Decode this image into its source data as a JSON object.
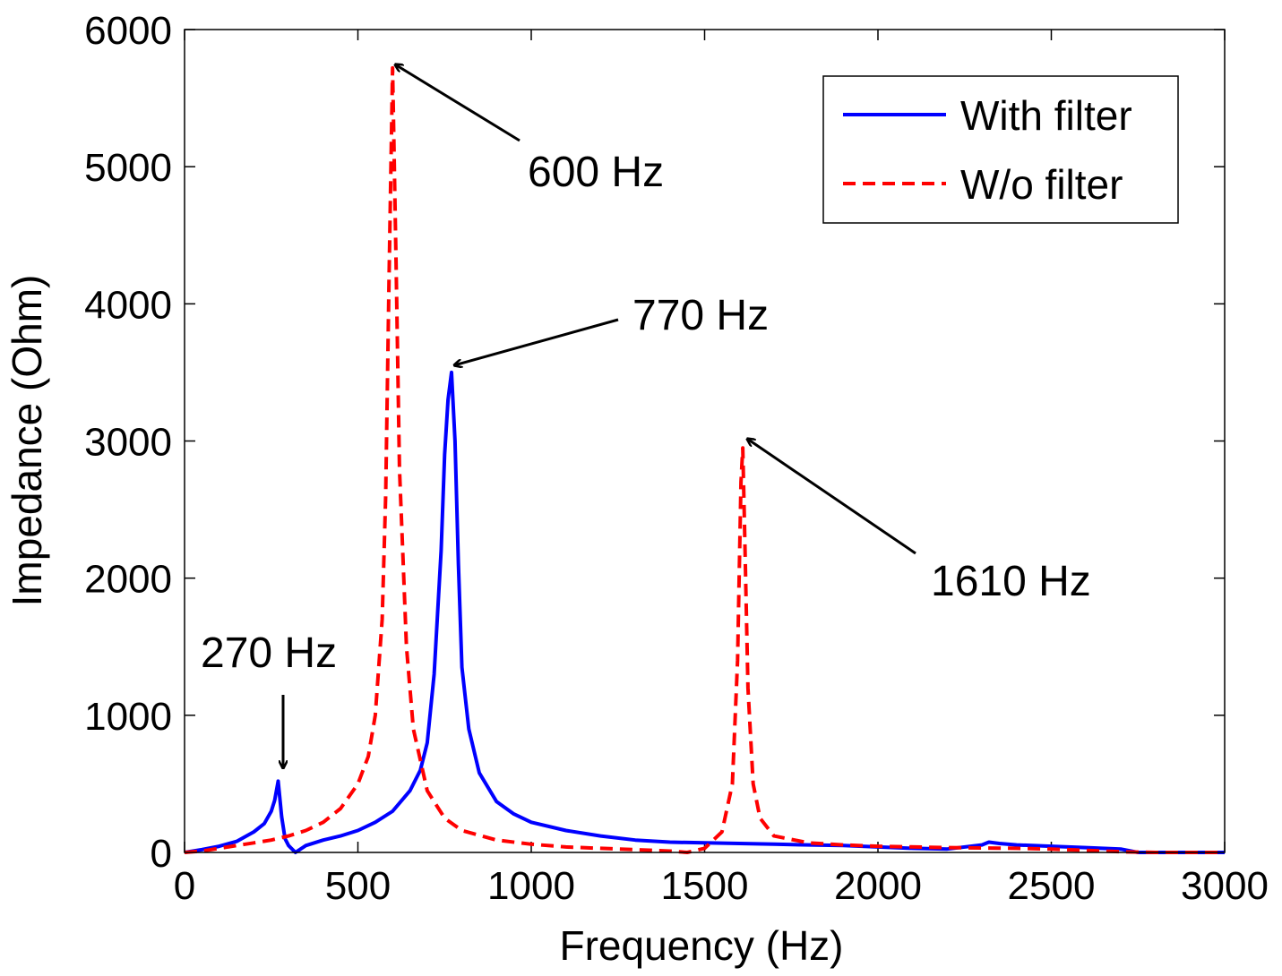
{
  "chart_data": {
    "type": "line",
    "title": "",
    "xlabel": "Frequency (Hz)",
    "ylabel": "Impedance (Ohm)",
    "xlim": [
      0,
      3000
    ],
    "ylim": [
      0,
      6000
    ],
    "xticks": [
      0,
      500,
      1000,
      1500,
      2000,
      2500,
      3000
    ],
    "yticks": [
      0,
      1000,
      2000,
      3000,
      4000,
      5000,
      6000
    ],
    "xtick_labels": [
      "0",
      "500",
      "1000",
      "1500",
      "2000",
      "2500",
      "3000"
    ],
    "ytick_labels": [
      "0",
      "1000",
      "2000",
      "3000",
      "4000",
      "5000",
      "6000"
    ],
    "grid": false,
    "legend_position": "top-right",
    "series": [
      {
        "name": "With filter",
        "color": "#0000ff",
        "style": "solid",
        "x": [
          0,
          50,
          100,
          150,
          200,
          230,
          250,
          260,
          270,
          280,
          290,
          300,
          320,
          350,
          400,
          450,
          500,
          550,
          600,
          650,
          680,
          700,
          720,
          740,
          750,
          760,
          770,
          780,
          790,
          800,
          820,
          850,
          900,
          950,
          1000,
          1100,
          1200,
          1300,
          1400,
          1500,
          1600,
          1700,
          1800,
          1900,
          2000,
          2100,
          2200,
          2300,
          2320,
          2350,
          2400,
          2500,
          2600,
          2700,
          2730,
          2750,
          2800,
          2900,
          3000
        ],
        "y": [
          0,
          20,
          45,
          80,
          150,
          210,
          300,
          380,
          520,
          260,
          100,
          50,
          0,
          50,
          90,
          120,
          160,
          220,
          300,
          450,
          600,
          800,
          1300,
          2200,
          2900,
          3300,
          3500,
          3000,
          2100,
          1350,
          900,
          580,
          370,
          280,
          220,
          160,
          120,
          90,
          75,
          70,
          65,
          60,
          55,
          50,
          40,
          30,
          25,
          55,
          75,
          65,
          55,
          45,
          35,
          25,
          10,
          0,
          0,
          0,
          0
        ]
      },
      {
        "name": "W/o filter",
        "color": "#ff0000",
        "style": "dashed",
        "x": [
          0,
          50,
          100,
          150,
          200,
          250,
          300,
          350,
          400,
          450,
          500,
          530,
          550,
          570,
          580,
          590,
          600,
          610,
          620,
          640,
          660,
          700,
          750,
          800,
          900,
          1000,
          1100,
          1200,
          1300,
          1400,
          1450,
          1500,
          1550,
          1580,
          1595,
          1605,
          1610,
          1615,
          1625,
          1640,
          1660,
          1700,
          1800,
          1900,
          2000,
          2200,
          2400,
          2500,
          2600,
          2700,
          2800,
          3000
        ],
        "y": [
          0,
          10,
          30,
          50,
          70,
          90,
          120,
          160,
          220,
          320,
          500,
          700,
          1000,
          1700,
          2600,
          4200,
          5720,
          4300,
          2800,
          1500,
          900,
          450,
          250,
          160,
          90,
          60,
          40,
          30,
          20,
          10,
          0,
          30,
          150,
          500,
          1400,
          2700,
          2950,
          2400,
          1200,
          500,
          250,
          120,
          70,
          55,
          45,
          35,
          30,
          25,
          15,
          5,
          0,
          0
        ]
      }
    ],
    "annotations": [
      {
        "text": "600 Hz",
        "x": 600,
        "y": 5720
      },
      {
        "text": "770 Hz",
        "x": 770,
        "y": 3500
      },
      {
        "text": "1610 Hz",
        "x": 1610,
        "y": 2950
      },
      {
        "text": "270 Hz",
        "x": 280,
        "y": 580
      }
    ]
  }
}
